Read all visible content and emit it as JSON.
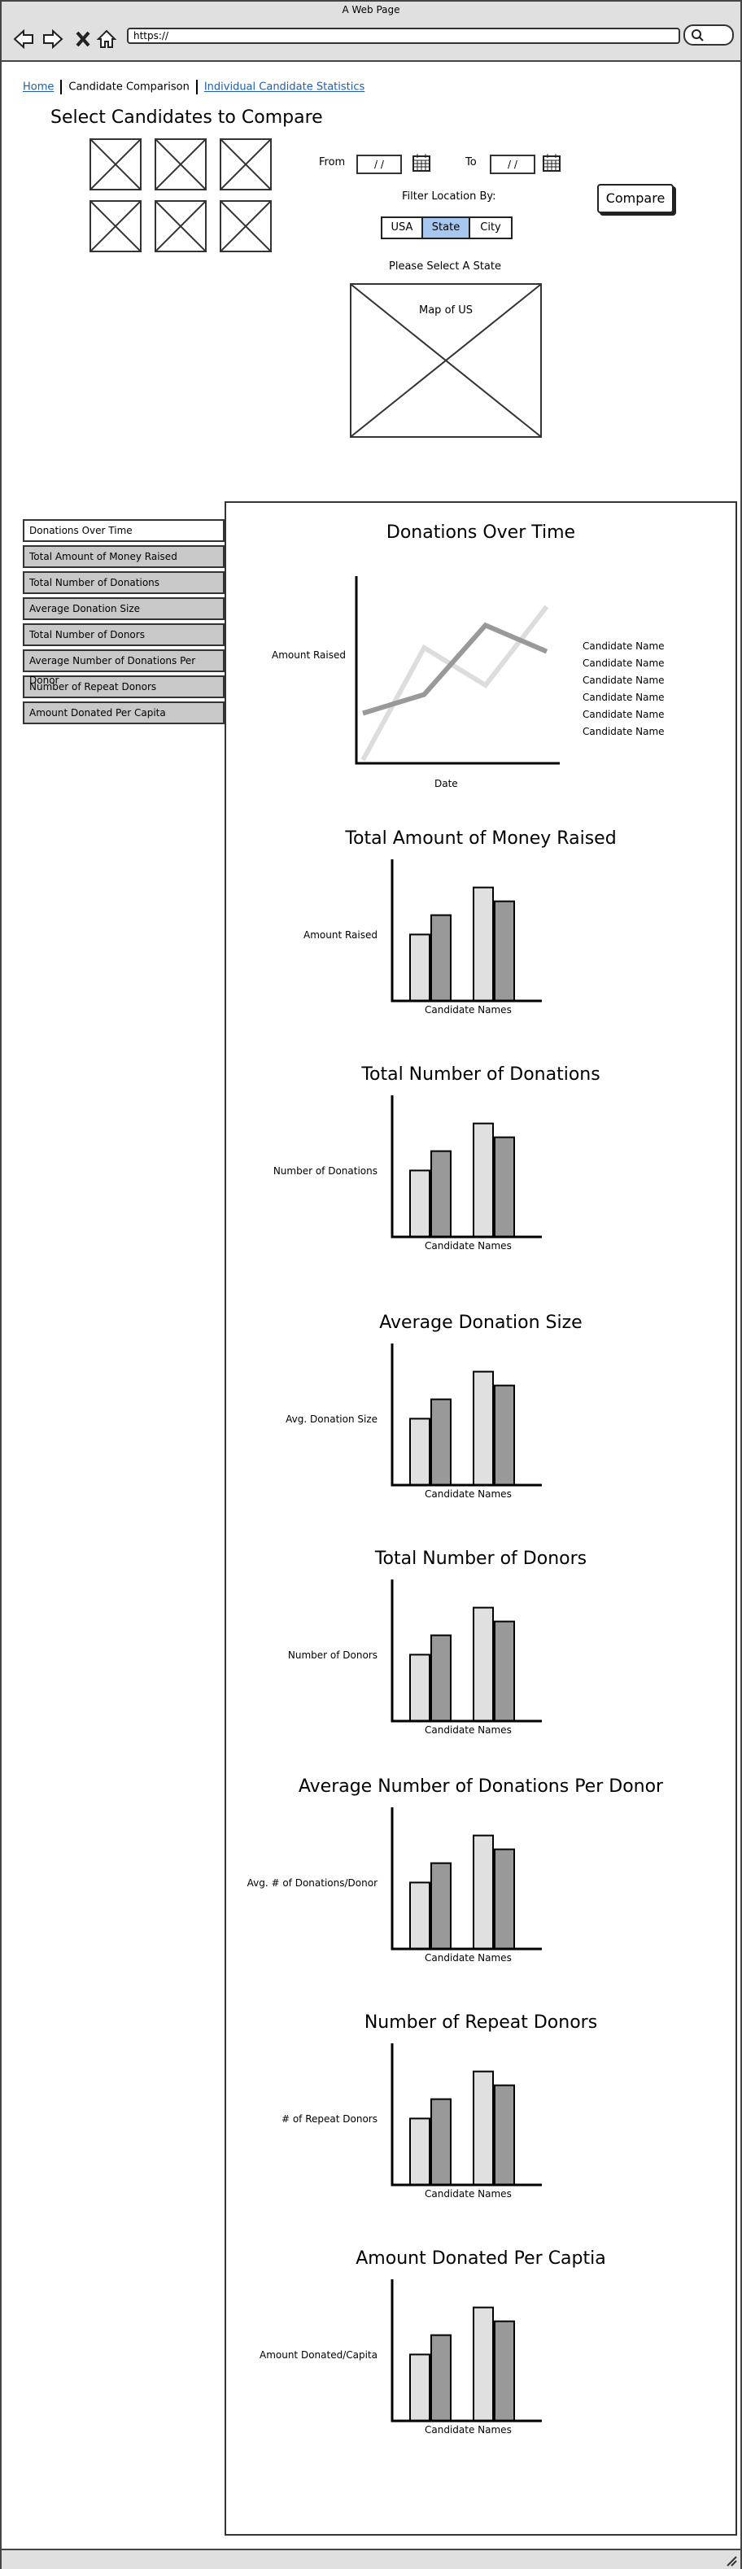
{
  "window": {
    "title": "A Web Page"
  },
  "browser": {
    "url": "https://"
  },
  "breadcrumb": {
    "home": "Home",
    "current": "Candidate Comparison",
    "stats": "Individual Candidate Statistics"
  },
  "select": {
    "heading": "Select Candidates to Compare"
  },
  "dates": {
    "from_label": "From",
    "to_label": "To",
    "from_value": "/  /",
    "to_value": "/  /"
  },
  "filter": {
    "label": "Filter Location By:",
    "options": [
      "USA",
      "State",
      "City"
    ],
    "selected": "State",
    "prompt": "Please Select A State"
  },
  "map": {
    "label": "Map of US"
  },
  "compare_label": "Compare",
  "tabs": [
    "Donations Over Time",
    "Total Amount of Money Raised",
    "Total Number of Donations",
    "Average Donation Size",
    "Total Number of Donors",
    "Average Number of Donations Per Donor",
    "Number of Repeat Donors",
    "Amount Donated Per Capita"
  ],
  "line_chart": {
    "title": "Donations Over Time",
    "ylabel": "Amount Raised",
    "xlabel": "Date",
    "legend": [
      "Candidate Name",
      "Candidate Name",
      "Candidate Name",
      "Candidate Name",
      "Candidate Name",
      "Candidate Name"
    ]
  },
  "chart_data": [
    {
      "type": "line",
      "title": "Donations Over Time",
      "xlabel": "Date",
      "ylabel": "Amount Raised",
      "x": [
        0,
        1,
        2,
        3
      ],
      "series": [
        {
          "values": [
            0,
            60,
            40,
            82
          ],
          "color": "#dddddd"
        },
        {
          "values": [
            25,
            35,
            72,
            58
          ],
          "color": "#999999"
        }
      ],
      "legend": "right"
    },
    {
      "type": "bar",
      "title": "Total Amount of Money Raised",
      "xlabel": "Candidate Names",
      "ylabel": "Amount Raised",
      "values": [
        48,
        62,
        82,
        72
      ],
      "colors": [
        "#e0e0e0",
        "#999999",
        "#e0e0e0",
        "#999999"
      ]
    },
    {
      "type": "bar",
      "title": "Total Number of Donations",
      "xlabel": "Candidate Names",
      "ylabel": "Number of Donations",
      "values": [
        48,
        62,
        82,
        72
      ],
      "colors": [
        "#e0e0e0",
        "#999999",
        "#e0e0e0",
        "#999999"
      ]
    },
    {
      "type": "bar",
      "title": "Average Donation Size",
      "xlabel": "Candidate Names",
      "ylabel": "Avg. Donation Size",
      "values": [
        48,
        62,
        82,
        72
      ],
      "colors": [
        "#e0e0e0",
        "#999999",
        "#e0e0e0",
        "#999999"
      ]
    },
    {
      "type": "bar",
      "title": "Total Number of Donors",
      "xlabel": "Candidate Names",
      "ylabel": "Number of Donors",
      "values": [
        48,
        62,
        82,
        72
      ],
      "colors": [
        "#e0e0e0",
        "#999999",
        "#e0e0e0",
        "#999999"
      ]
    },
    {
      "type": "bar",
      "title": "Average Number of Donations Per Donor",
      "xlabel": "Candidate Names",
      "ylabel": "Avg. # of Donations/Donor",
      "values": [
        48,
        62,
        82,
        72
      ],
      "colors": [
        "#e0e0e0",
        "#999999",
        "#e0e0e0",
        "#999999"
      ]
    },
    {
      "type": "bar",
      "title": "Number of Repeat Donors",
      "xlabel": "Candidate Names",
      "ylabel": "# of Repeat Donors",
      "values": [
        48,
        62,
        82,
        72
      ],
      "colors": [
        "#e0e0e0",
        "#999999",
        "#e0e0e0",
        "#999999"
      ]
    },
    {
      "type": "bar",
      "title": "Amount Donated Per Captia",
      "xlabel": "Candidate Names",
      "ylabel": "Amount Donated/Capita",
      "values": [
        48,
        62,
        82,
        72
      ],
      "colors": [
        "#e0e0e0",
        "#999999",
        "#e0e0e0",
        "#999999"
      ]
    }
  ]
}
